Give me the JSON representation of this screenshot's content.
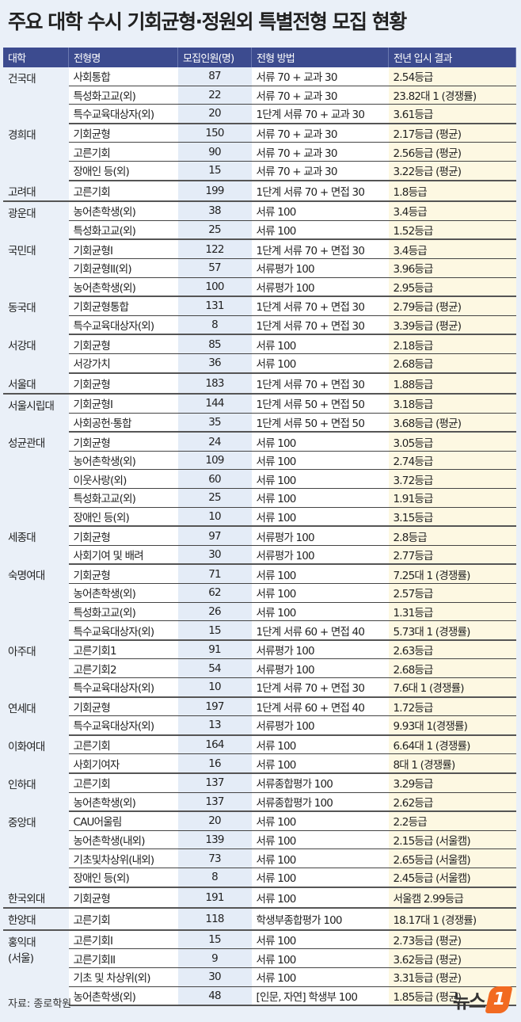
{
  "title": "주요 대학 수시 기회균형·정원외 특별전형 모집 현황",
  "headers": [
    "대학",
    "전형명",
    "모집인원(명)",
    "전형 방법",
    "전년 입시 결과"
  ],
  "groups": [
    {
      "univ": "건국대",
      "rows": [
        [
          "사회통합",
          "87",
          "서류 70 + 교과 30",
          "2.54등급"
        ],
        [
          "특성화고교(외)",
          "22",
          "서류 70 + 교과 30",
          "23.82대 1 (경쟁률)"
        ],
        [
          "특수교육대상자(외)",
          "20",
          "1단계 서류 70 + 교과 30",
          "3.61등급"
        ]
      ]
    },
    {
      "univ": "경희대",
      "rows": [
        [
          "기회균형",
          "150",
          "서류 70 + 교과 30",
          "2.17등급 (평균)"
        ],
        [
          "고른기회",
          "90",
          "서류 70 + 교과 30",
          "2.56등급 (평균)"
        ],
        [
          "장애인 등(외)",
          "15",
          "서류 70 + 교과 30",
          "3.22등급 (평균)"
        ]
      ]
    },
    {
      "univ": "고려대",
      "rows": [
        [
          "고른기회",
          "199",
          "1단계 서류 70 + 면접 30",
          "1.8등급"
        ]
      ]
    },
    {
      "univ": "광운대",
      "rows": [
        [
          "농어촌학생(외)",
          "38",
          "서류 100",
          "3.4등급"
        ],
        [
          "특성화고교(외)",
          "25",
          "서류 100",
          "1.52등급"
        ]
      ]
    },
    {
      "univ": "국민대",
      "rows": [
        [
          "기회균형I",
          "122",
          "1단계 서류 70 + 면접 30",
          "3.4등급"
        ],
        [
          "기회균형II(외)",
          "57",
          "서류평가 100",
          "3.96등급"
        ],
        [
          "농어촌학생(외)",
          "100",
          "서류평가 100",
          "2.95등급"
        ]
      ]
    },
    {
      "univ": "동국대",
      "rows": [
        [
          "기회균형통합",
          "131",
          "1단계 서류 70 + 면접 30",
          "2.79등급 (평균)"
        ],
        [
          "특수교육대상자(외)",
          "8",
          "1단계 서류 70 + 면접 30",
          "3.39등급 (평균)"
        ]
      ]
    },
    {
      "univ": "서강대",
      "rows": [
        [
          "기회균형",
          "85",
          "서류 100",
          "2.18등급"
        ],
        [
          "서강가치",
          "36",
          "서류 100",
          "2.68등급"
        ]
      ]
    },
    {
      "univ": "서울대",
      "rows": [
        [
          "기회균형",
          "183",
          "1단계 서류 70 + 면접 30",
          "1.88등급"
        ]
      ]
    },
    {
      "univ": "서울시립대",
      "rows": [
        [
          "기회균형I",
          "144",
          "1단계 서류 50 + 면접 50",
          "3.18등급"
        ],
        [
          "사회공헌·통합",
          "35",
          "1단계 서류 50 + 면접 50",
          "3.68등급 (평균)"
        ]
      ]
    },
    {
      "univ": "성균관대",
      "rows": [
        [
          "기회균형",
          "24",
          "서류 100",
          "3.05등급"
        ],
        [
          "농어촌학생(외)",
          "109",
          "서류 100",
          "2.74등급"
        ],
        [
          "이웃사랑(외)",
          "60",
          "서류 100",
          "3.72등급"
        ],
        [
          "특성화고교(외)",
          "25",
          "서류 100",
          "1.91등급"
        ],
        [
          "장애인 등(외)",
          "10",
          "서류 100",
          "3.15등급"
        ]
      ]
    },
    {
      "univ": "세종대",
      "rows": [
        [
          "기회균형",
          "97",
          "서류평가 100",
          "2.8등급"
        ],
        [
          "사회기여 및 배려",
          "30",
          "서류평가 100",
          "2.77등급"
        ]
      ]
    },
    {
      "univ": "숙명여대",
      "rows": [
        [
          "기회균형",
          "71",
          "서류 100",
          "7.25대 1 (경쟁률)"
        ],
        [
          "농어촌학생(외)",
          "62",
          "서류 100",
          "2.57등급"
        ],
        [
          "특성화고교(외)",
          "26",
          "서류 100",
          "1.31등급"
        ],
        [
          "특수교육대상자(외)",
          "15",
          "1단계 서류 60 + 면접 40",
          "5.73대 1 (경쟁률)"
        ]
      ]
    },
    {
      "univ": "아주대",
      "rows": [
        [
          "고른기회1",
          "91",
          "서류평가 100",
          "2.63등급"
        ],
        [
          "고른기회2",
          "54",
          "서류평가 100",
          "2.68등급"
        ],
        [
          "특수교육대상자(외)",
          "10",
          "1단계 서류 70 + 면접 30",
          "7.6대 1 (경쟁률)"
        ]
      ]
    },
    {
      "univ": "연세대",
      "rows": [
        [
          "기회균형",
          "197",
          "1단계 서류 60 + 면접 40",
          "1.72등급"
        ],
        [
          "특수교육대상자(외)",
          "13",
          "서류평가 100",
          "9.93대 1(경쟁률)"
        ]
      ]
    },
    {
      "univ": "이화여대",
      "rows": [
        [
          "고른기회",
          "164",
          "서류 100",
          "6.64대 1 (경쟁률)"
        ],
        [
          "사회기여자",
          "16",
          "서류 100",
          "8대 1 (경쟁률)"
        ]
      ]
    },
    {
      "univ": "인하대",
      "rows": [
        [
          "고른기회",
          "137",
          "서류종합평가 100",
          "3.29등급"
        ],
        [
          "농어촌학생(외)",
          "137",
          "서류종합평가 100",
          "2.62등급"
        ]
      ]
    },
    {
      "univ": "중앙대",
      "rows": [
        [
          "CAU어울림",
          "20",
          "서류 100",
          "2.2등급"
        ],
        [
          "농어촌학생(내외)",
          "139",
          "서류 100",
          "2.15등급 (서울캠)"
        ],
        [
          "기초및차상위(내외)",
          "73",
          "서류 100",
          "2.65등급 (서울캠)"
        ],
        [
          "장애인 등(외)",
          "8",
          "서류 100",
          "2.45등급 (서울캠)"
        ]
      ]
    },
    {
      "univ": "한국외대",
      "rows": [
        [
          "기회균형",
          "191",
          "서류 100",
          "서울캠 2.99등급"
        ]
      ]
    },
    {
      "univ": "한양대",
      "rows": [
        [
          "고른기회",
          "118",
          "학생부종합평가 100",
          "18.17대 1 (경쟁률)"
        ]
      ]
    },
    {
      "univ": "홍익대\n(서울)",
      "rows": [
        [
          "고른기회I",
          "15",
          "서류 100",
          "2.73등급 (평균)"
        ],
        [
          "고른기회II",
          "9",
          "서류 100",
          "3.62등급 (평균)"
        ],
        [
          "기초 및 차상위(외)",
          "30",
          "서류 100",
          "3.31등급 (평균)"
        ],
        [
          "농어촌학생(외)",
          "48",
          "[인문, 자연] 학생부 100",
          "1.85등급 (평균)"
        ]
      ]
    }
  ],
  "source": "자료: 종로학원",
  "logo": "뉴스1",
  "colors": {
    "header": "#3c4b8f",
    "result_bg": "#fdf8e2",
    "count_bg": "#e4ecf7",
    "logo": "#f26a21"
  }
}
